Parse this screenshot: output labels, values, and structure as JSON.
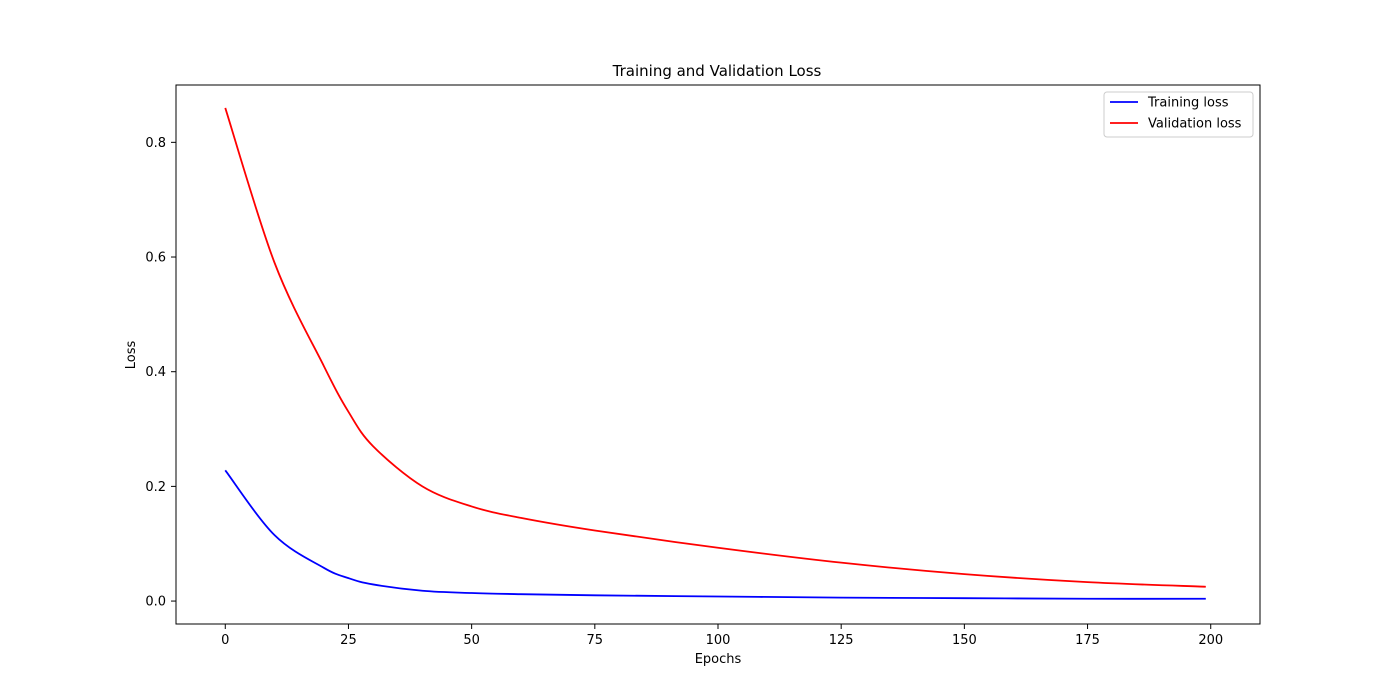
{
  "chart_data": {
    "type": "line",
    "title": "Training and Validation Loss",
    "xlabel": "Epochs",
    "ylabel": "Loss",
    "xlim": [
      -10,
      210
    ],
    "ylim": [
      -0.04,
      0.9
    ],
    "xticks": [
      0,
      25,
      50,
      75,
      100,
      125,
      150,
      175,
      200
    ],
    "yticks": [
      0.0,
      0.2,
      0.4,
      0.6,
      0.8
    ],
    "grid": false,
    "legend": {
      "placement": "top-right"
    },
    "x": [
      0,
      10,
      20,
      25,
      30,
      40,
      50,
      60,
      75,
      100,
      125,
      150,
      175,
      199
    ],
    "series": [
      {
        "name": "Training loss",
        "color": "#0000ff",
        "values": [
          0.228,
          0.115,
          0.058,
          0.04,
          0.029,
          0.018,
          0.014,
          0.012,
          0.01,
          0.008,
          0.006,
          0.005,
          0.004,
          0.004
        ]
      },
      {
        "name": "Validation loss",
        "color": "#ff0000",
        "values": [
          0.86,
          0.59,
          0.41,
          0.33,
          0.27,
          0.2,
          0.165,
          0.145,
          0.123,
          0.093,
          0.067,
          0.047,
          0.033,
          0.025
        ]
      }
    ]
  }
}
